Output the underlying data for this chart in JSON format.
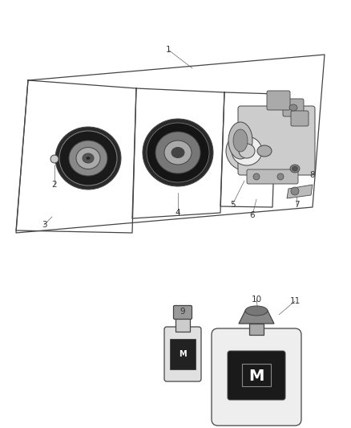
{
  "bg_color": "#ffffff",
  "line_color": "#444444",
  "label_color": "#333333",
  "dark_gray": "#555555",
  "mid_gray": "#888888",
  "light_gray": "#bbbbbb",
  "very_light_gray": "#dddddd",
  "near_black": "#1a1a1a"
}
